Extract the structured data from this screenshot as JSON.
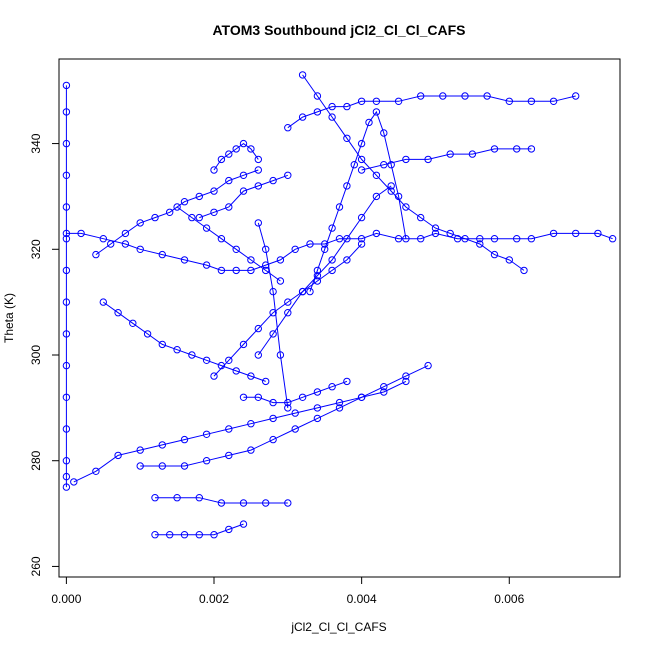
{
  "chart_data": {
    "type": "scatter",
    "title": "ATOM3 Southbound jCl2_Cl_Cl_CAFS",
    "xlabel": "jCl2_Cl_Cl_CAFS",
    "ylabel": "Theta (K)",
    "xlim": [
      -0.0001,
      0.0075
    ],
    "ylim": [
      258,
      356
    ],
    "x_ticks": [
      0.0,
      0.002,
      0.004,
      0.006
    ],
    "x_tick_labels": [
      "0.000",
      "0.002",
      "0.004",
      "0.006"
    ],
    "y_ticks": [
      260,
      280,
      300,
      320,
      340
    ],
    "y_tick_labels": [
      "260",
      "280",
      "300",
      "320",
      "340"
    ],
    "grid": false,
    "marker": "open-circle",
    "connect_points": true,
    "color": "#0000ff",
    "series": [
      {
        "x": [
          0.0,
          0.0,
          0.0,
          0.0,
          0.0,
          0.0,
          0.0,
          0.0,
          0.0,
          0.0,
          0.0,
          0.0,
          0.0,
          0.0,
          0.0
        ],
        "y": [
          351,
          346,
          340,
          334,
          328,
          322,
          316,
          310,
          304,
          298,
          292,
          286,
          280,
          277,
          275
        ]
      },
      {
        "x": [
          0.0,
          0.0002,
          0.0005,
          0.0008,
          0.001,
          0.0013,
          0.0016,
          0.0019,
          0.0021,
          0.0023,
          0.0025,
          0.0027,
          0.0029,
          0.0031,
          0.0033,
          0.0035,
          0.0037,
          0.004,
          0.0042,
          0.0045,
          0.0048,
          0.005,
          0.0053,
          0.0056,
          0.0058,
          0.0061,
          0.0063,
          0.0066,
          0.0069,
          0.0072,
          0.0074
        ],
        "y": [
          323,
          323,
          322,
          321,
          320,
          319,
          318,
          317,
          316,
          316,
          316,
          317,
          318,
          320,
          321,
          321,
          322,
          322,
          323,
          322,
          322,
          323,
          322,
          322,
          322,
          322,
          322,
          323,
          323,
          323,
          322
        ]
      },
      {
        "x": [
          0.0001,
          0.0004,
          0.0007,
          0.001,
          0.0013,
          0.0016,
          0.0019,
          0.0022,
          0.0025,
          0.0028,
          0.0031,
          0.0034,
          0.0037,
          0.004,
          0.0043,
          0.0046
        ],
        "y": [
          276,
          278,
          281,
          282,
          283,
          284,
          285,
          286,
          287,
          288,
          289,
          290,
          291,
          292,
          293,
          295
        ]
      },
      {
        "x": [
          0.0004,
          0.0006,
          0.0008,
          0.001,
          0.0012,
          0.0014,
          0.0016,
          0.0018,
          0.002,
          0.0022,
          0.0024,
          0.0026
        ],
        "y": [
          319,
          321,
          323,
          325,
          326,
          327,
          329,
          330,
          331,
          333,
          334,
          335
        ]
      },
      {
        "x": [
          0.0012,
          0.0014,
          0.0016,
          0.0018,
          0.002,
          0.0022,
          0.0024
        ],
        "y": [
          266,
          266,
          266,
          266,
          266,
          267,
          268
        ]
      },
      {
        "x": [
          0.0012,
          0.0015,
          0.0018,
          0.0021,
          0.0024,
          0.0027,
          0.003
        ],
        "y": [
          273,
          273,
          273,
          272,
          272,
          272,
          272
        ]
      },
      {
        "x": [
          0.002,
          0.0021,
          0.0022,
          0.0023,
          0.0024,
          0.0025,
          0.0026
        ],
        "y": [
          335,
          337,
          338,
          339,
          340,
          339,
          337
        ]
      },
      {
        "x": [
          0.002,
          0.0022,
          0.0024,
          0.0026,
          0.0028,
          0.003,
          0.0032,
          0.0034,
          0.0036,
          0.0038,
          0.004
        ],
        "y": [
          296,
          299,
          302,
          305,
          308,
          310,
          312,
          314,
          316,
          318,
          321
        ]
      },
      {
        "x": [
          0.0026,
          0.0028,
          0.003,
          0.0032,
          0.0034,
          0.0036,
          0.0038,
          0.004,
          0.0042,
          0.0044
        ],
        "y": [
          300,
          304,
          308,
          312,
          315,
          318,
          322,
          326,
          330,
          332
        ]
      },
      {
        "x": [
          0.003,
          0.0032,
          0.0034,
          0.0036,
          0.0038,
          0.004,
          0.0042,
          0.0045,
          0.0048,
          0.0051,
          0.0054,
          0.0057,
          0.006,
          0.0063,
          0.0066,
          0.0069
        ],
        "y": [
          343,
          345,
          346,
          347,
          347,
          348,
          348,
          348,
          349,
          349,
          349,
          349,
          348,
          348,
          348,
          349
        ]
      },
      {
        "x": [
          0.0032,
          0.0034,
          0.0036,
          0.0038,
          0.004,
          0.0042,
          0.0044,
          0.0046,
          0.0048,
          0.005,
          0.0052,
          0.0054,
          0.0056,
          0.0058,
          0.006,
          0.0062
        ],
        "y": [
          353,
          349,
          345,
          341,
          337,
          334,
          331,
          328,
          326,
          324,
          323,
          322,
          321,
          319,
          318,
          316
        ]
      },
      {
        "x": [
          0.0033,
          0.0034,
          0.0035,
          0.0036,
          0.0037,
          0.0038,
          0.0039,
          0.004,
          0.0041,
          0.0042,
          0.0043,
          0.0044,
          0.0045,
          0.0046
        ],
        "y": [
          312,
          316,
          320,
          324,
          328,
          332,
          336,
          340,
          344,
          346,
          342,
          336,
          330,
          322
        ]
      },
      {
        "x": [
          0.004,
          0.0043,
          0.0046,
          0.0049,
          0.0052,
          0.0055,
          0.0058,
          0.0061,
          0.0063
        ],
        "y": [
          335,
          336,
          337,
          337,
          338,
          338,
          339,
          339,
          339
        ]
      },
      {
        "x": [
          0.001,
          0.0013,
          0.0016,
          0.0019,
          0.0022,
          0.0025,
          0.0028,
          0.0031,
          0.0034,
          0.0037,
          0.004,
          0.0043,
          0.0046,
          0.0049
        ],
        "y": [
          279,
          279,
          279,
          280,
          281,
          282,
          284,
          286,
          288,
          290,
          292,
          294,
          296,
          298
        ]
      },
      {
        "x": [
          0.0005,
          0.0007,
          0.0009,
          0.0011,
          0.0013,
          0.0015,
          0.0017,
          0.0019,
          0.0021,
          0.0023,
          0.0025,
          0.0027
        ],
        "y": [
          310,
          308,
          306,
          304,
          302,
          301,
          300,
          299,
          298,
          297,
          296,
          295
        ]
      },
      {
        "x": [
          0.0015,
          0.0017,
          0.0019,
          0.0021,
          0.0023,
          0.0025,
          0.0027,
          0.0029
        ],
        "y": [
          328,
          326,
          324,
          322,
          320,
          318,
          316,
          314
        ]
      },
      {
        "x": [
          0.0018,
          0.002,
          0.0022,
          0.0024,
          0.0026,
          0.0028,
          0.003
        ],
        "y": [
          326,
          327,
          328,
          331,
          332,
          333,
          334
        ]
      },
      {
        "x": [
          0.0026,
          0.0027,
          0.0028,
          0.0029,
          0.003
        ],
        "y": [
          325,
          320,
          312,
          300,
          290
        ]
      },
      {
        "x": [
          0.0024,
          0.0026,
          0.0028,
          0.003,
          0.0032,
          0.0034,
          0.0036,
          0.0038
        ],
        "y": [
          292,
          292,
          291,
          291,
          292,
          293,
          294,
          295
        ]
      }
    ]
  }
}
